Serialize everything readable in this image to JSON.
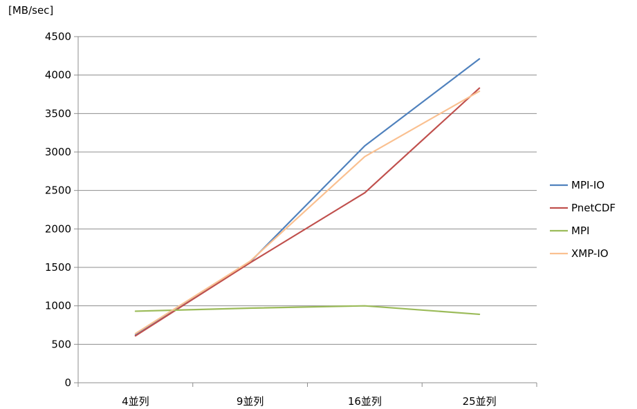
{
  "chart_data": {
    "type": "line",
    "title": "",
    "ylabel": "[MB/sec]",
    "xlabel": "",
    "categories": [
      "4並列",
      "9並列",
      "16並列",
      "25並列"
    ],
    "ylim": [
      0,
      4500
    ],
    "yticks": [
      0,
      500,
      1000,
      1500,
      2000,
      2500,
      3000,
      3500,
      4000,
      4500
    ],
    "grid": true,
    "legend_position": "right",
    "series": [
      {
        "name": "MPI-IO",
        "color": "#4f81bd",
        "values": [
          620,
          1570,
          3080,
          4210
        ]
      },
      {
        "name": "PnetCDF",
        "color": "#c0504d",
        "values": [
          610,
          1560,
          2470,
          3830
        ]
      },
      {
        "name": "MPI",
        "color": "#9bbb59",
        "values": [
          930,
          970,
          1000,
          890
        ]
      },
      {
        "name": "XMP-IO",
        "color": "#fac090",
        "values": [
          640,
          1580,
          2940,
          3790
        ]
      }
    ]
  }
}
